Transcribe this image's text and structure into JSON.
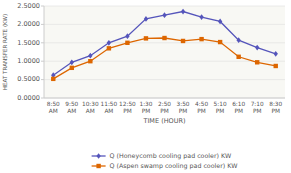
{
  "chart_data": {
    "type": "line",
    "xlabel": "TIME (HOUR)",
    "ylabel": "HEAT TRANSFER RATE (KW)",
    "categories": [
      "8:50\nAM",
      "9:50\nAM",
      "10:30\nAM",
      "11:50\nAM",
      "12:50\nPM",
      "1:30\nPM",
      "2:50\nPM",
      "3:50\nPM",
      "4:50\nPM",
      "5:10\nPM",
      "6:10\nPM",
      "7:10\nPM",
      "8:30\nPM"
    ],
    "series": [
      {
        "name": "Q (Honeycomb cooling pad cooler) KW",
        "color": "#5555bb",
        "marker": "diamond",
        "values": [
          0.62,
          0.97,
          1.15,
          1.5,
          1.68,
          2.15,
          2.25,
          2.35,
          2.2,
          2.08,
          1.57,
          1.37,
          1.2
        ]
      },
      {
        "name": "Q (Aspen swamp cooling pad cooler) KW",
        "color": "#dd6600",
        "marker": "square",
        "values": [
          0.52,
          0.82,
          1.0,
          1.35,
          1.5,
          1.62,
          1.63,
          1.55,
          1.6,
          1.52,
          1.12,
          0.97,
          0.87
        ]
      }
    ],
    "ylim": [
      0.0,
      2.5
    ],
    "yticks": [
      {
        "value": 0.0,
        "label": "0.0000"
      },
      {
        "value": 0.5,
        "label": "0.5000"
      },
      {
        "value": 1.0,
        "label": "1.0000"
      },
      {
        "value": 1.5,
        "label": "1.5000"
      },
      {
        "value": 2.0,
        "label": "2.0000"
      },
      {
        "value": 2.5,
        "label": "2.5000"
      }
    ],
    "grid": true,
    "legend": "bottom"
  }
}
